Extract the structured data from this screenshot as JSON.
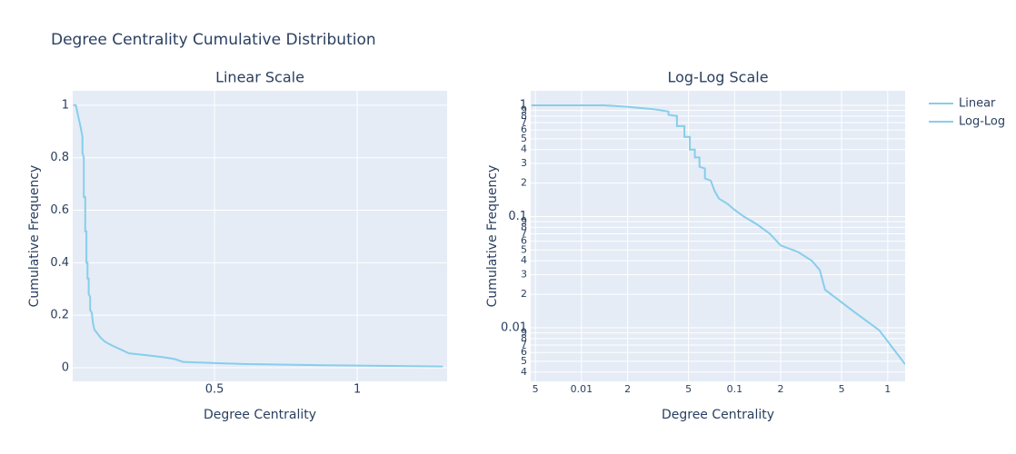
{
  "title": "Degree Centrality Cumulative Distribution",
  "chart_data": [
    {
      "type": "line",
      "title": "Linear Scale",
      "x_label": "Degree Centrality",
      "y_label": "Cumulative Frequency",
      "log": false,
      "grid": true,
      "xlim": [
        0.003,
        1.315
      ],
      "ylim": [
        -0.052,
        1.055
      ],
      "xticks": [
        0.5,
        1
      ],
      "yticks": [
        0,
        0.2,
        0.4,
        0.6,
        0.8,
        1
      ],
      "series": [
        {
          "name": "Linear",
          "color": "#87ceeb",
          "x": [
            0.0047,
            0.014,
            0.02,
            0.03,
            0.037,
            0.037,
            0.042,
            0.042,
            0.047,
            0.047,
            0.051,
            0.051,
            0.055,
            0.055,
            0.059,
            0.059,
            0.064,
            0.064,
            0.07,
            0.074,
            0.079,
            0.09,
            0.1,
            0.115,
            0.14,
            0.17,
            0.2,
            0.26,
            0.32,
            0.36,
            0.39,
            0.6,
            0.88,
            1.3
          ],
          "values": [
            1,
            1,
            0.97,
            0.92,
            0.88,
            0.82,
            0.8,
            0.65,
            0.65,
            0.52,
            0.52,
            0.4,
            0.4,
            0.34,
            0.34,
            0.28,
            0.27,
            0.22,
            0.21,
            0.17,
            0.145,
            0.13,
            0.115,
            0.1,
            0.085,
            0.07,
            0.055,
            0.048,
            0.04,
            0.033,
            0.022,
            0.014,
            0.0095,
            0.0047
          ]
        }
      ]
    },
    {
      "type": "line",
      "title": "Log-Log Scale",
      "x_label": "Degree Centrality",
      "y_label": "Cumulative Frequency",
      "log": true,
      "grid": true,
      "legend": "right",
      "xlim": [
        0.00466,
        1.3
      ],
      "ylim": [
        0.0033,
        1.35
      ],
      "xticks": [
        {
          "value": 0.005,
          "label": "5"
        },
        0.01,
        {
          "value": 0.02,
          "label": "2"
        },
        {
          "value": 0.05,
          "label": "5"
        },
        0.1,
        {
          "value": 0.2,
          "label": "2"
        },
        {
          "value": 0.5,
          "label": "5"
        },
        1
      ],
      "yticks": [
        1,
        {
          "value": 0.9,
          "label": "9"
        },
        {
          "value": 0.8,
          "label": "8"
        },
        {
          "value": 0.7,
          "label": "7"
        },
        {
          "value": 0.6,
          "label": "6"
        },
        {
          "value": 0.5,
          "label": "5"
        },
        {
          "value": 0.4,
          "label": "4"
        },
        {
          "value": 0.3,
          "label": "3"
        },
        {
          "value": 0.2,
          "label": "2"
        },
        0.1,
        {
          "value": 0.09,
          "label": "9"
        },
        {
          "value": 0.08,
          "label": "8"
        },
        {
          "value": 0.07,
          "label": "7"
        },
        {
          "value": 0.06,
          "label": "6"
        },
        {
          "value": 0.05,
          "label": "5"
        },
        {
          "value": 0.04,
          "label": "4"
        },
        {
          "value": 0.03,
          "label": "3"
        },
        {
          "value": 0.02,
          "label": "2"
        },
        0.01,
        {
          "value": 0.009,
          "label": "9"
        },
        {
          "value": 0.008,
          "label": "8"
        },
        {
          "value": 0.007,
          "label": "7"
        },
        {
          "value": 0.006,
          "label": "6"
        },
        {
          "value": 0.005,
          "label": "5"
        },
        {
          "value": 0.004,
          "label": "4"
        }
      ],
      "series": [
        {
          "name": "Log-Log",
          "color": "#87ceeb",
          "x": [
            0.0047,
            0.014,
            0.02,
            0.03,
            0.037,
            0.037,
            0.042,
            0.042,
            0.047,
            0.047,
            0.051,
            0.051,
            0.055,
            0.055,
            0.059,
            0.059,
            0.064,
            0.064,
            0.07,
            0.074,
            0.079,
            0.09,
            0.1,
            0.115,
            0.14,
            0.17,
            0.2,
            0.26,
            0.32,
            0.36,
            0.39,
            0.6,
            0.88,
            1.3
          ],
          "values": [
            1,
            1,
            0.97,
            0.92,
            0.88,
            0.82,
            0.8,
            0.65,
            0.65,
            0.52,
            0.52,
            0.4,
            0.4,
            0.34,
            0.34,
            0.28,
            0.27,
            0.22,
            0.21,
            0.17,
            0.145,
            0.13,
            0.115,
            0.1,
            0.085,
            0.07,
            0.055,
            0.048,
            0.04,
            0.033,
            0.022,
            0.014,
            0.0095,
            0.0047
          ]
        }
      ]
    }
  ]
}
